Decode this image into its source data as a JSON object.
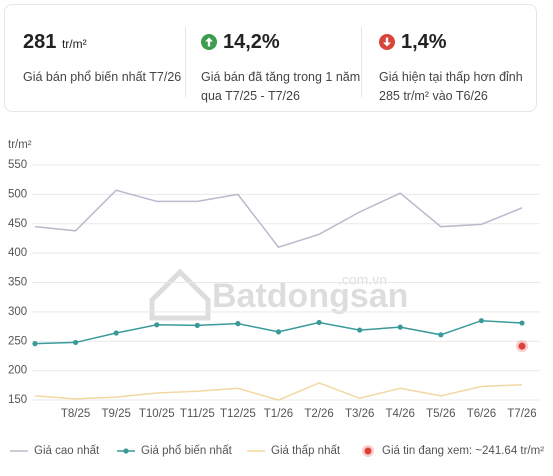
{
  "stats": [
    {
      "value": "281",
      "unit": "tr/m²",
      "label": "Giá bán phổ biến nhất T7/26"
    },
    {
      "value": "14,2%",
      "label": "Giá bán đã tăng trong 1 năm qua T7/25 - T7/26"
    },
    {
      "value": "1,4%",
      "label": "Giá hiện tại thấp hơn đỉnh 285 tr/m² vào T6/26"
    }
  ],
  "watermark": {
    "brand": "Batdongsan",
    "domain": ".com.vn"
  },
  "chart_data": {
    "type": "line",
    "y_label": "tr/m²",
    "categories": [
      null,
      "T8/25",
      "T9/25",
      "T10/25",
      "T11/25",
      "T12/25",
      "T1/26",
      "T2/26",
      "T3/26",
      "T4/26",
      "T5/26",
      "T6/26",
      "T7/26"
    ],
    "ylim": [
      140,
      560
    ],
    "yticks": [
      150,
      200,
      250,
      300,
      350,
      400,
      450,
      500,
      550
    ],
    "grid": true,
    "series": [
      {
        "name": "Giá cao nhất",
        "color": "#bdb8cc",
        "markers": false,
        "values": [
          445,
          438,
          507,
          488,
          488,
          500,
          410,
          432,
          470,
          502,
          445,
          449,
          477
        ]
      },
      {
        "name": "Giá phổ biến nhất",
        "color": "#3a9a9a",
        "markers": true,
        "values": [
          246,
          248,
          264,
          278,
          277,
          280,
          266,
          282,
          269,
          274,
          261,
          285,
          281
        ]
      },
      {
        "name": "Giá thấp nhất",
        "color": "#f2d8a2",
        "markers": false,
        "values": [
          157,
          152,
          155,
          162,
          165,
          170,
          150,
          179,
          153,
          170,
          157,
          173,
          176
        ]
      }
    ],
    "current_listing": {
      "name": "Giá tin đang xem: ~241.64 tr/m²",
      "value": 241.64,
      "color": "#e0403a"
    }
  }
}
